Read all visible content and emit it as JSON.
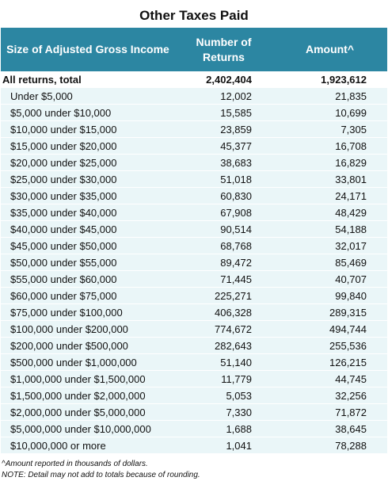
{
  "title": "Other Taxes Paid",
  "header": {
    "col1": "Size of Adjusted Gross Income",
    "col2": "Number of Returns",
    "col3": "Amount^"
  },
  "total_row": {
    "label": "All returns, total",
    "returns": "2,402,404",
    "amount": "1,923,612"
  },
  "rows": [
    {
      "label": "Under $5,000",
      "returns": "12,002",
      "amount": "21,835"
    },
    {
      "label": "$5,000 under $10,000",
      "returns": "15,585",
      "amount": "10,699"
    },
    {
      "label": "$10,000 under $15,000",
      "returns": "23,859",
      "amount": "7,305"
    },
    {
      "label": "$15,000 under $20,000",
      "returns": "45,377",
      "amount": "16,708"
    },
    {
      "label": "$20,000 under $25,000",
      "returns": "38,683",
      "amount": "16,829"
    },
    {
      "label": "$25,000 under $30,000",
      "returns": "51,018",
      "amount": "33,801"
    },
    {
      "label": "$30,000 under $35,000",
      "returns": "60,830",
      "amount": "24,171"
    },
    {
      "label": "$35,000 under $40,000",
      "returns": "67,908",
      "amount": "48,429"
    },
    {
      "label": "$40,000 under $45,000",
      "returns": "90,514",
      "amount": "54,188"
    },
    {
      "label": "$45,000 under $50,000",
      "returns": "68,768",
      "amount": "32,017"
    },
    {
      "label": "$50,000 under $55,000",
      "returns": "89,472",
      "amount": "85,469"
    },
    {
      "label": "$55,000 under $60,000",
      "returns": "71,445",
      "amount": "40,707"
    },
    {
      "label": "$60,000 under $75,000",
      "returns": "225,271",
      "amount": "99,840"
    },
    {
      "label": "$75,000 under $100,000",
      "returns": "406,328",
      "amount": "289,315"
    },
    {
      "label": "$100,000 under $200,000",
      "returns": "774,672",
      "amount": "494,744"
    },
    {
      "label": "$200,000 under $500,000",
      "returns": "282,643",
      "amount": "255,536"
    },
    {
      "label": "$500,000 under $1,000,000",
      "returns": "51,140",
      "amount": "126,215"
    },
    {
      "label": "$1,000,000 under $1,500,000",
      "returns": "11,779",
      "amount": "44,745"
    },
    {
      "label": "$1,500,000 under $2,000,000",
      "returns": "5,053",
      "amount": "32,256"
    },
    {
      "label": "$2,000,000 under $5,000,000",
      "returns": "7,330",
      "amount": "71,872"
    },
    {
      "label": "$5,000,000 under $10,000,000",
      "returns": "1,688",
      "amount": "38,645"
    },
    {
      "label": "$10,000,000 or more",
      "returns": "1,041",
      "amount": "78,288"
    }
  ],
  "notes": [
    "^Amount reported in thousands of dollars.",
    "NOTE: Detail may not add to totals because of rounding."
  ],
  "colors": {
    "header_bg": "#2c86a2",
    "row_bg": "#eaf6f8"
  }
}
